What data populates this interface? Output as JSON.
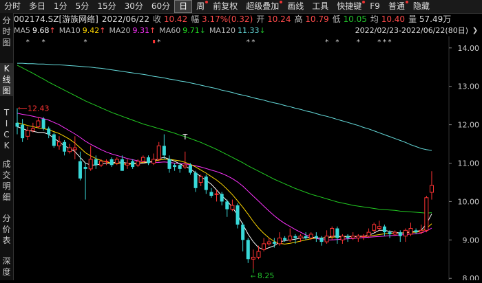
{
  "toolbar": {
    "items": [
      {
        "label": "分时",
        "active": false,
        "dot": false
      },
      {
        "label": "多日",
        "active": false,
        "dot": false
      },
      {
        "label": "1分",
        "active": false,
        "dot": false
      },
      {
        "label": "5分",
        "active": false,
        "dot": false
      },
      {
        "label": "15分",
        "active": false,
        "dot": false
      },
      {
        "label": "30分",
        "active": false,
        "dot": false
      },
      {
        "label": "60分",
        "active": false,
        "dot": false
      },
      {
        "label": "日",
        "active": true,
        "dot": false
      },
      {
        "label": "周",
        "active": false,
        "dot": true
      },
      {
        "label": "前复权",
        "active": false,
        "dot": false
      },
      {
        "label": "超级叠加",
        "active": false,
        "dot": true
      },
      {
        "label": "画线",
        "active": false,
        "dot": false
      },
      {
        "label": "工具",
        "active": false,
        "dot": false
      },
      {
        "label": "快捷键",
        "active": false,
        "dot": true
      },
      {
        "label": "F9",
        "active": false,
        "dot": false
      },
      {
        "label": "普通",
        "active": false,
        "dot": true
      },
      {
        "label": "隐藏",
        "active": false,
        "dot": false
      }
    ]
  },
  "sidebar": {
    "groups": [
      {
        "chars": [
          "分",
          "时",
          "图"
        ],
        "active": false
      },
      {
        "chars": [
          "K",
          "线",
          "图"
        ],
        "active": true
      },
      {
        "chars": [
          "T",
          "I",
          "C",
          "K"
        ],
        "active": false
      },
      {
        "chars": [
          "成",
          "交",
          "明",
          "细"
        ],
        "active": false
      },
      {
        "chars": [
          "分",
          "价",
          "表"
        ],
        "active": false
      },
      {
        "chars": [
          "深",
          "度"
        ],
        "active": false
      }
    ]
  },
  "info": {
    "code": "002174.SZ[游族网络]",
    "date": "2022/06/22",
    "close_label": "收",
    "close": "10.42",
    "change_label": "幅",
    "change": "3.17%(0.32)",
    "open_label": "开",
    "open": "10.24",
    "high_label": "高",
    "high": "10.79",
    "low_label": "低",
    "low": "10.05",
    "avg_label": "均",
    "avg": "10.40",
    "amount_label": "量",
    "amount": "57.49万"
  },
  "ma": [
    {
      "name": "MA5",
      "value": "9.68",
      "arrow": "↑",
      "color": "#ffffff"
    },
    {
      "name": "MA10",
      "value": "9.42",
      "arrow": "↑",
      "color": "#ffd700"
    },
    {
      "name": "MA20",
      "value": "9.31",
      "arrow": "↑",
      "color": "#ff33ff"
    },
    {
      "name": "MA60",
      "value": "9.71",
      "arrow": "↓",
      "color": "#22dd22"
    },
    {
      "name": "MA120",
      "value": "11.33",
      "arrow": "↓",
      "color": "#66dddd"
    }
  ],
  "date_range": "2022/02/23-2022/06/22(80日)",
  "chevron_icon": "chevron-right-icon",
  "colors": {
    "up": "#ff3333",
    "down": "#39d9d9",
    "ma5": "#ffffff",
    "ma10": "#ffd700",
    "ma20": "#ff33ff",
    "ma60": "#22cc22",
    "ma120": "#66dddd"
  },
  "chart_data": {
    "type": "candlestick",
    "y_ticks": [
      "14.00",
      "13.00",
      "12.00",
      "11.00",
      "10.00",
      "9.00",
      "8.00"
    ],
    "ylim": [
      7.95,
      14.3
    ],
    "high_marker": "12.43",
    "low_marker": "8.25",
    "star_markers": [
      2,
      5,
      13,
      27,
      44,
      45,
      59,
      61,
      65,
      69,
      70,
      71
    ],
    "tick_marker_index": 32,
    "tick_marker_label": "T",
    "candles": [
      [
        12.05,
        11.95,
        12.43,
        11.75
      ],
      [
        12.0,
        11.65,
        12.15,
        11.55
      ],
      [
        11.7,
        11.85,
        11.95,
        11.6
      ],
      [
        11.85,
        11.9,
        12.05,
        11.8
      ],
      [
        11.95,
        12.1,
        12.2,
        11.9
      ],
      [
        12.15,
        11.9,
        12.2,
        11.85
      ],
      [
        11.9,
        11.75,
        11.95,
        11.65
      ],
      [
        11.75,
        11.45,
        11.8,
        11.4
      ],
      [
        11.45,
        11.55,
        11.7,
        11.35
      ],
      [
        11.55,
        11.3,
        11.6,
        11.2
      ],
      [
        11.3,
        11.4,
        11.5,
        11.25
      ],
      [
        11.35,
        11.4,
        11.7,
        11.1
      ],
      [
        11.05,
        10.6,
        11.3,
        10.55
      ],
      [
        10.9,
        10.85,
        11.0,
        10.05
      ],
      [
        10.85,
        11.1,
        11.45,
        10.8
      ],
      [
        11.1,
        10.95,
        11.2,
        10.85
      ],
      [
        10.95,
        11.05,
        11.1,
        10.9
      ],
      [
        11.05,
        11.05,
        11.1,
        10.95
      ],
      [
        11.1,
        10.95,
        11.15,
        10.9
      ],
      [
        11.0,
        11.1,
        11.15,
        10.95
      ],
      [
        11.1,
        10.8,
        11.2,
        10.8
      ],
      [
        10.95,
        11.0,
        11.1,
        10.85
      ],
      [
        11.05,
        10.9,
        11.1,
        10.85
      ],
      [
        10.95,
        11.05,
        11.1,
        10.9
      ],
      [
        11.05,
        11.15,
        11.2,
        11.0
      ],
      [
        11.15,
        11.0,
        11.2,
        10.95
      ],
      [
        11.0,
        11.1,
        11.25,
        10.95
      ],
      [
        11.1,
        11.45,
        11.55,
        11.05
      ],
      [
        11.45,
        11.2,
        11.75,
        11.1
      ],
      [
        11.1,
        10.85,
        11.2,
        10.75
      ],
      [
        10.95,
        10.9,
        11.0,
        10.8
      ],
      [
        10.95,
        10.85,
        11.0,
        10.75
      ],
      [
        10.9,
        10.95,
        11.3,
        10.85
      ],
      [
        10.95,
        10.75,
        11.0,
        10.7
      ],
      [
        10.75,
        10.35,
        10.8,
        10.25
      ],
      [
        10.5,
        10.65,
        10.7,
        10.4
      ],
      [
        10.65,
        10.3,
        10.7,
        10.2
      ],
      [
        10.25,
        10.15,
        10.35,
        10.1
      ],
      [
        10.2,
        10.2,
        10.3,
        10.0
      ],
      [
        10.2,
        10.0,
        10.25,
        9.9
      ],
      [
        10.0,
        9.8,
        10.05,
        9.6
      ],
      [
        9.8,
        9.9,
        10.05,
        9.75
      ],
      [
        9.9,
        9.4,
        9.95,
        9.3
      ],
      [
        9.4,
        9.0,
        9.45,
        8.7
      ],
      [
        9.0,
        8.5,
        9.05,
        8.4
      ],
      [
        8.5,
        8.55,
        8.75,
        8.25
      ],
      [
        8.55,
        8.7,
        8.85,
        8.5
      ],
      [
        8.75,
        8.9,
        9.05,
        8.7
      ],
      [
        8.9,
        8.95,
        9.05,
        8.85
      ],
      [
        8.95,
        8.9,
        9.05,
        8.8
      ],
      [
        8.9,
        9.05,
        9.2,
        8.85
      ],
      [
        9.05,
        9.0,
        9.1,
        8.95
      ],
      [
        9.0,
        9.1,
        9.3,
        8.95
      ],
      [
        9.1,
        9.05,
        9.15,
        8.9
      ],
      [
        9.05,
        9.1,
        9.15,
        8.95
      ],
      [
        9.1,
        9.05,
        9.2,
        9.0
      ],
      [
        9.05,
        9.15,
        9.2,
        9.0
      ],
      [
        9.1,
        9.05,
        9.2,
        8.95
      ],
      [
        9.05,
        8.95,
        9.1,
        8.85
      ],
      [
        8.95,
        9.1,
        9.25,
        8.9
      ],
      [
        9.1,
        9.3,
        9.35,
        9.0
      ],
      [
        9.3,
        9.05,
        9.35,
        8.9
      ],
      [
        9.0,
        9.1,
        9.15,
        8.9
      ],
      [
        9.1,
        9.05,
        9.15,
        8.95
      ],
      [
        9.05,
        9.1,
        9.2,
        9.0
      ],
      [
        9.05,
        9.1,
        9.15,
        8.95
      ],
      [
        9.1,
        9.1,
        9.15,
        9.0
      ],
      [
        9.1,
        9.2,
        9.3,
        9.05
      ],
      [
        9.25,
        9.4,
        9.45,
        9.2
      ],
      [
        9.3,
        9.35,
        9.5,
        9.25
      ],
      [
        9.35,
        9.2,
        9.4,
        9.1
      ],
      [
        9.2,
        9.15,
        9.25,
        9.05
      ],
      [
        9.15,
        9.2,
        9.25,
        9.1
      ],
      [
        9.2,
        9.1,
        9.25,
        8.95
      ],
      [
        9.1,
        9.25,
        9.3,
        8.95
      ],
      [
        9.15,
        9.3,
        9.45,
        9.1
      ],
      [
        9.25,
        9.2,
        9.3,
        9.15
      ],
      [
        9.2,
        9.25,
        9.4,
        9.15
      ],
      [
        9.25,
        10.1,
        10.15,
        9.2
      ],
      [
        10.24,
        10.42,
        10.79,
        10.05
      ]
    ],
    "series": [
      {
        "name": "MA120",
        "values": [
          13.6,
          13.6,
          13.59,
          13.59,
          13.58,
          13.58,
          13.57,
          13.56,
          13.56,
          13.55,
          13.54,
          13.53,
          13.52,
          13.51,
          13.5,
          13.48,
          13.47,
          13.45,
          13.43,
          13.41,
          13.39,
          13.37,
          13.35,
          13.33,
          13.31,
          13.29,
          13.26,
          13.24,
          13.22,
          13.19,
          13.17,
          13.14,
          13.12,
          13.09,
          13.06,
          13.03,
          13.0,
          12.97,
          12.94,
          12.9,
          12.87,
          12.84,
          12.8,
          12.77,
          12.74,
          12.7,
          12.67,
          12.64,
          12.6,
          12.57,
          12.54,
          12.5,
          12.47,
          12.43,
          12.4,
          12.36,
          12.33,
          12.29,
          12.25,
          12.22,
          12.18,
          12.14,
          12.1,
          12.06,
          12.02,
          11.98,
          11.93,
          11.89,
          11.84,
          11.79,
          11.74,
          11.69,
          11.64,
          11.59,
          11.54,
          11.48,
          11.43,
          11.38,
          11.35,
          11.33
        ]
      },
      {
        "name": "MA60",
        "values": [
          13.55,
          13.48,
          13.41,
          13.34,
          13.26,
          13.19,
          13.11,
          13.04,
          12.97,
          12.9,
          12.83,
          12.76,
          12.69,
          12.62,
          12.56,
          12.5,
          12.44,
          12.38,
          12.32,
          12.27,
          12.22,
          12.17,
          12.12,
          12.07,
          12.02,
          11.98,
          11.94,
          11.9,
          11.86,
          11.82,
          11.78,
          11.73,
          11.69,
          11.64,
          11.59,
          11.54,
          11.48,
          11.42,
          11.36,
          11.29,
          11.22,
          11.15,
          11.08,
          11.01,
          10.93,
          10.86,
          10.79,
          10.72,
          10.65,
          10.58,
          10.52,
          10.46,
          10.4,
          10.34,
          10.29,
          10.24,
          10.19,
          10.15,
          10.11,
          10.07,
          10.03,
          9.99,
          9.96,
          9.93,
          9.9,
          9.88,
          9.86,
          9.84,
          9.82,
          9.8,
          9.79,
          9.78,
          9.77,
          9.75,
          9.74,
          9.73,
          9.72,
          9.71,
          9.7,
          9.71
        ]
      },
      {
        "name": "MA20",
        "values": [
          12.3,
          12.27,
          12.25,
          12.22,
          12.19,
          12.16,
          12.12,
          12.06,
          12.0,
          11.92,
          11.84,
          11.76,
          11.67,
          11.57,
          11.49,
          11.42,
          11.35,
          11.29,
          11.24,
          11.2,
          11.16,
          11.12,
          11.09,
          11.06,
          11.04,
          11.03,
          11.02,
          11.02,
          11.03,
          11.02,
          11.0,
          10.99,
          10.98,
          10.96,
          10.93,
          10.9,
          10.86,
          10.82,
          10.78,
          10.73,
          10.67,
          10.6,
          10.51,
          10.4,
          10.27,
          10.14,
          10.01,
          9.88,
          9.75,
          9.63,
          9.52,
          9.43,
          9.35,
          9.27,
          9.2,
          9.13,
          9.08,
          9.04,
          9.01,
          9.0,
          9.0,
          9.01,
          9.02,
          9.03,
          9.04,
          9.05,
          9.06,
          9.07,
          9.08,
          9.09,
          9.1,
          9.11,
          9.12,
          9.13,
          9.14,
          9.15,
          9.16,
          9.18,
          9.23,
          9.31
        ]
      },
      {
        "name": "MA10",
        "values": [
          12.05,
          12.02,
          11.98,
          11.95,
          11.92,
          11.9,
          11.87,
          11.82,
          11.77,
          11.7,
          11.62,
          11.52,
          11.4,
          11.27,
          11.19,
          11.12,
          11.07,
          11.03,
          11.0,
          10.99,
          10.98,
          10.97,
          10.98,
          11.0,
          11.02,
          11.03,
          11.05,
          11.08,
          11.1,
          11.1,
          11.08,
          11.06,
          11.02,
          10.97,
          10.9,
          10.82,
          10.74,
          10.65,
          10.56,
          10.45,
          10.32,
          10.18,
          10.02,
          9.85,
          9.67,
          9.48,
          9.31,
          9.17,
          9.05,
          8.96,
          8.91,
          8.89,
          8.91,
          8.94,
          8.97,
          9.0,
          9.03,
          9.05,
          9.05,
          9.06,
          9.07,
          9.08,
          9.08,
          9.08,
          9.09,
          9.09,
          9.09,
          9.1,
          9.12,
          9.14,
          9.16,
          9.17,
          9.18,
          9.18,
          9.19,
          9.2,
          9.2,
          9.22,
          9.3,
          9.42
        ]
      },
      {
        "name": "MA5",
        "values": [
          11.95,
          11.9,
          11.85,
          11.83,
          11.8,
          11.8,
          11.75,
          11.65,
          11.55,
          11.45,
          11.38,
          11.3,
          11.15,
          11.0,
          10.95,
          10.95,
          10.98,
          11.0,
          11.0,
          11.03,
          11.02,
          11.0,
          11.0,
          11.0,
          11.0,
          11.02,
          11.05,
          11.12,
          11.15,
          11.1,
          11.05,
          10.98,
          10.92,
          10.85,
          10.75,
          10.65,
          10.55,
          10.45,
          10.3,
          10.15,
          10.02,
          9.85,
          9.65,
          9.4,
          9.15,
          8.95,
          8.8,
          8.75,
          8.8,
          8.85,
          8.95,
          8.98,
          9.0,
          9.02,
          9.05,
          9.05,
          9.08,
          9.05,
          9.05,
          9.05,
          9.1,
          9.1,
          9.08,
          9.1,
          9.08,
          9.1,
          9.1,
          9.12,
          9.18,
          9.25,
          9.25,
          9.22,
          9.2,
          9.18,
          9.18,
          9.22,
          9.22,
          9.25,
          9.42,
          9.68
        ]
      }
    ]
  }
}
